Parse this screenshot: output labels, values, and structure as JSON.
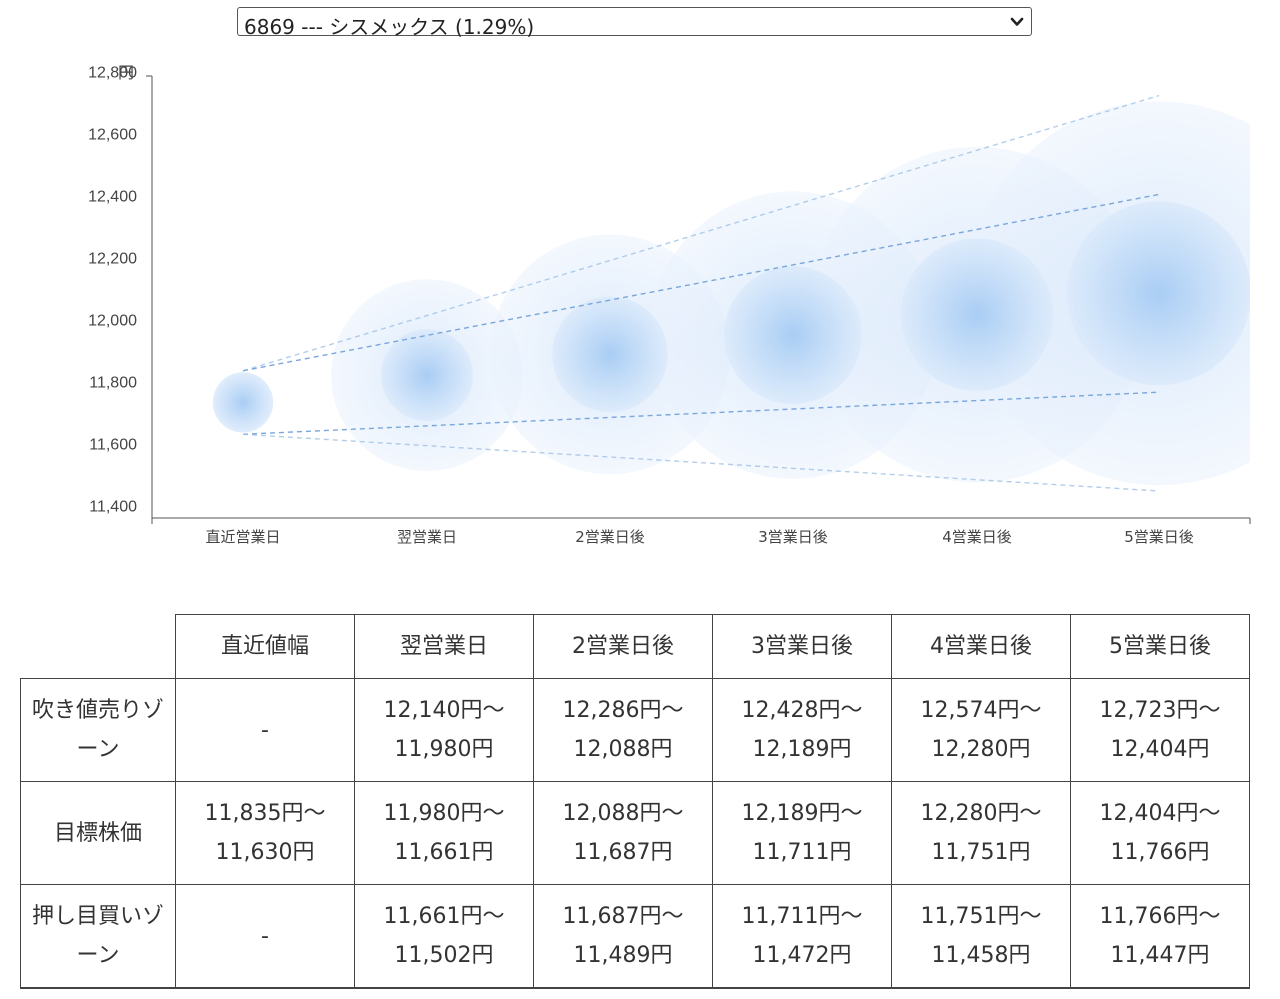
{
  "selector": {
    "selected": "6869 --- シスメックス (1.29%)"
  },
  "chart_data": {
    "type": "scatter",
    "unit_label": "円",
    "categories": [
      "直近営業日",
      "翌営業日",
      "2営業日後",
      "3営業日後",
      "4営業日後",
      "5営業日後"
    ],
    "yticks": [
      11400,
      11600,
      11800,
      12000,
      12200,
      12400,
      12600,
      12800
    ],
    "ytick_labels": [
      "11,400",
      "11,600",
      "11,800",
      "12,000",
      "12,200",
      "12,400",
      "12,600",
      "12,800"
    ],
    "ylim": [
      11360,
      12870
    ],
    "center": [
      11733,
      11821,
      11888,
      11950,
      12016,
      12085
    ],
    "target_high": [
      11835,
      11980,
      12088,
      12189,
      12280,
      12404
    ],
    "target_low": [
      11630,
      11661,
      11687,
      11711,
      11751,
      11766
    ],
    "outer_high": [
      11835,
      12140,
      12286,
      12428,
      12574,
      12723
    ],
    "outer_low": [
      11630,
      11502,
      11489,
      11472,
      11458,
      11447
    ],
    "colors": {
      "bubble": "#4a90e2",
      "line": "#7aa7db"
    }
  },
  "table": {
    "headers": [
      "",
      "直近値幅",
      "翌営業日",
      "2営業日後",
      "3営業日後",
      "4営業日後",
      "5営業日後"
    ],
    "rows": [
      {
        "label": [
          "吹き値売り",
          "ゾーン"
        ],
        "cells": [
          [
            "-"
          ],
          [
            "12,140円〜",
            "11,980円"
          ],
          [
            "12,286円〜",
            "12,088円"
          ],
          [
            "12,428円〜",
            "12,189円"
          ],
          [
            "12,574円〜",
            "12,280円"
          ],
          [
            "12,723円〜",
            "12,404円"
          ]
        ]
      },
      {
        "label": [
          "目標株価"
        ],
        "cells": [
          [
            "11,835円〜",
            "11,630円"
          ],
          [
            "11,980円〜",
            "11,661円"
          ],
          [
            "12,088円〜",
            "11,687円"
          ],
          [
            "12,189円〜",
            "11,711円"
          ],
          [
            "12,280円〜",
            "11,751円"
          ],
          [
            "12,404円〜",
            "11,766円"
          ]
        ]
      },
      {
        "label": [
          "押し目買い",
          "ゾーン"
        ],
        "cells": [
          [
            "-"
          ],
          [
            "11,661円〜",
            "11,502円"
          ],
          [
            "11,687円〜",
            "11,489円"
          ],
          [
            "11,711円〜",
            "11,472円"
          ],
          [
            "11,751円〜",
            "11,458円"
          ],
          [
            "11,766円〜",
            "11,447円"
          ]
        ]
      }
    ]
  }
}
